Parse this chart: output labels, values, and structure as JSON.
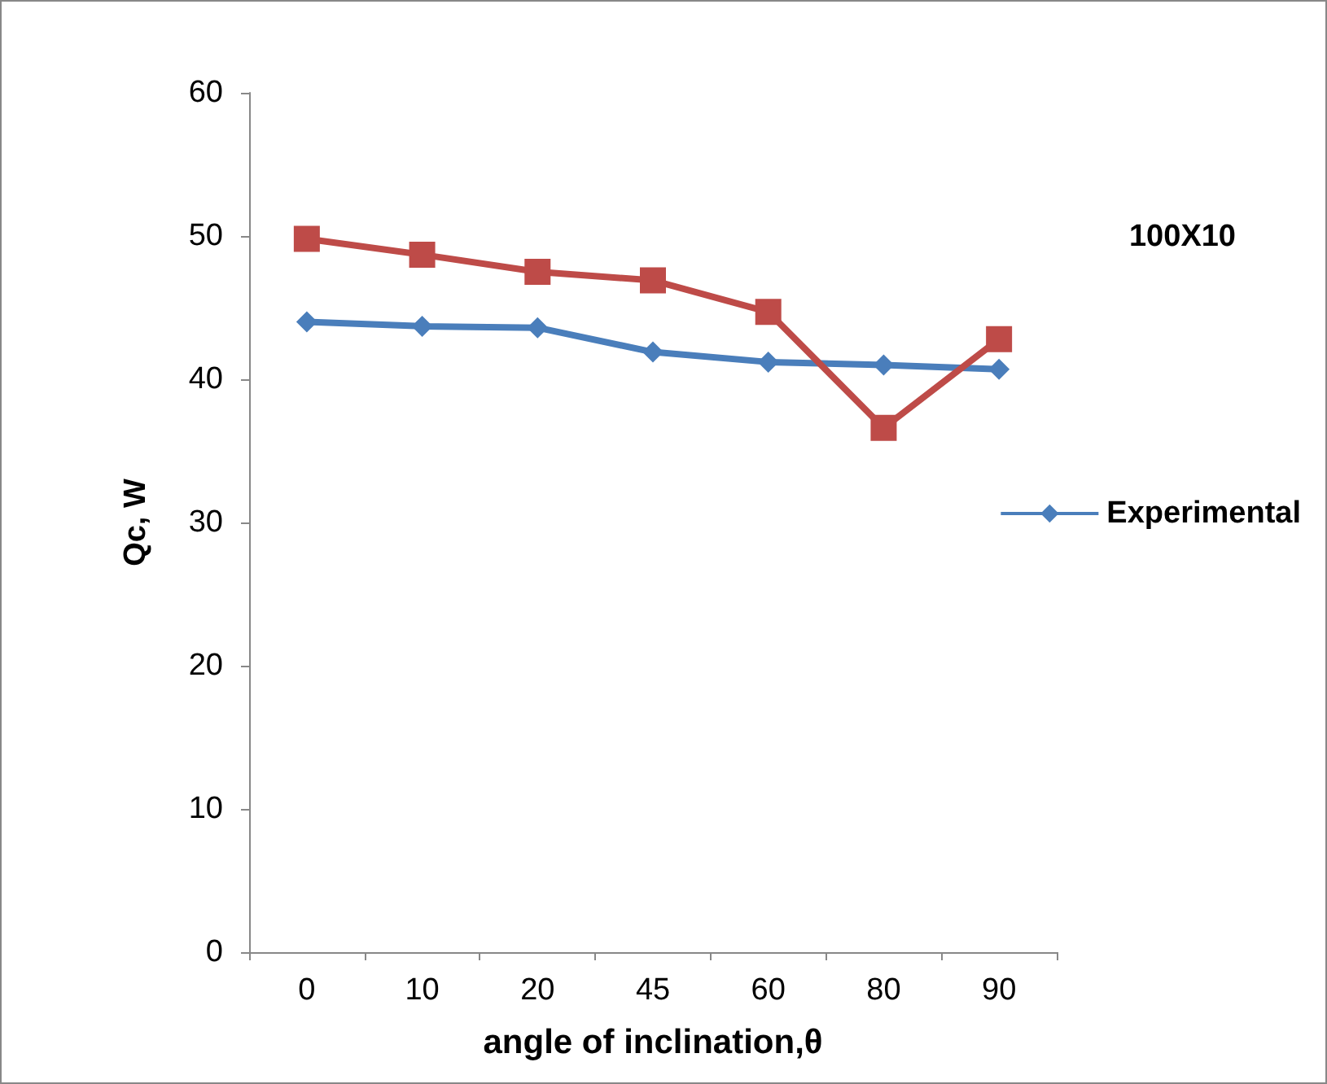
{
  "chart_data": {
    "type": "line",
    "xlabel": "angle of inclination,θ",
    "ylabel": "Qc, W",
    "categories": [
      "0",
      "10",
      "20",
      "45",
      "60",
      "80",
      "90"
    ],
    "series": [
      {
        "name": "Experimental",
        "color": "#4a7ebb",
        "marker": "diamond",
        "values": [
          44.0,
          43.7,
          43.6,
          41.9,
          41.2,
          41.0,
          40.7
        ]
      },
      {
        "color": "#be4b48",
        "marker": "square",
        "values": [
          49.8,
          48.7,
          47.5,
          46.9,
          44.7,
          36.6,
          42.8
        ]
      }
    ],
    "ylim": [
      0,
      60
    ],
    "yticks": [
      0,
      10,
      20,
      30,
      40,
      50,
      60
    ],
    "grid": false,
    "legend": "right",
    "annotations": [
      "100X10"
    ]
  }
}
